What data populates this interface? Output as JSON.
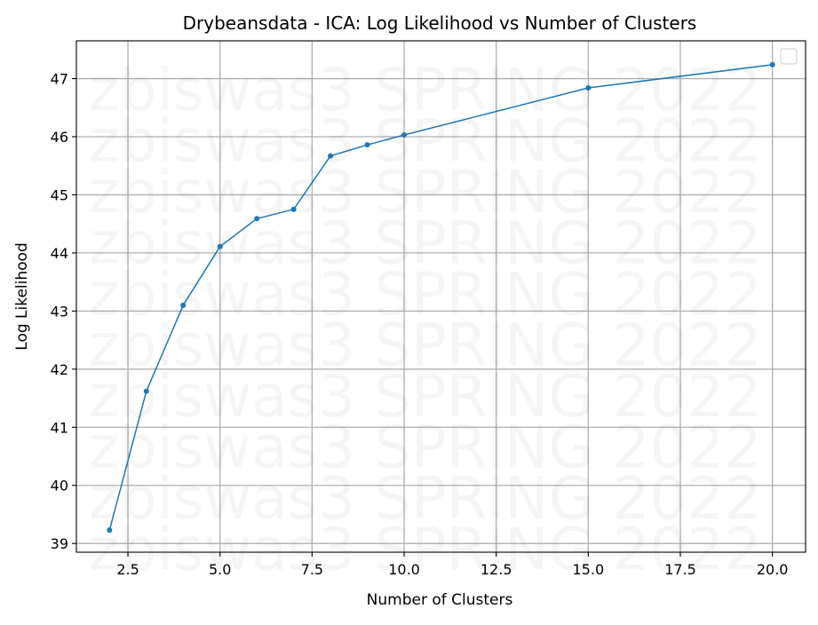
{
  "chart_data": {
    "type": "line",
    "title": "Drybeansdata - ICA: Log Likelihood vs Number of Clusters",
    "xlabel": "Number of Clusters",
    "ylabel": "Log Likelihood",
    "xlim": [
      1.1,
      20.9
    ],
    "ylim": [
      38.85,
      47.65
    ],
    "xticks": [
      2.5,
      5.0,
      7.5,
      10.0,
      12.5,
      15.0,
      17.5,
      20.0
    ],
    "xtick_labels": [
      "2.5",
      "5.0",
      "7.5",
      "10.0",
      "12.5",
      "15.0",
      "17.5",
      "20.0"
    ],
    "yticks": [
      39,
      40,
      41,
      42,
      43,
      44,
      45,
      46,
      47
    ],
    "ytick_labels": [
      "39",
      "40",
      "41",
      "42",
      "43",
      "44",
      "45",
      "46",
      "47"
    ],
    "grid": true,
    "legend": {
      "placement": "top-right",
      "entries": []
    },
    "series": [
      {
        "color": "#1f77b4",
        "marker": "dot",
        "x": [
          2,
          3,
          4,
          5,
          6,
          7,
          8,
          9,
          10,
          15,
          20
        ],
        "y": [
          39.23,
          41.62,
          43.1,
          44.11,
          44.59,
          44.75,
          45.67,
          45.86,
          46.03,
          46.84,
          47.24
        ]
      }
    ],
    "watermark": "zbiswas3 SPRING 2022"
  },
  "colors": {
    "grid": "#b0b0b0",
    "axes": "#000000",
    "background": "#ffffff",
    "series": "#1f77b4"
  }
}
